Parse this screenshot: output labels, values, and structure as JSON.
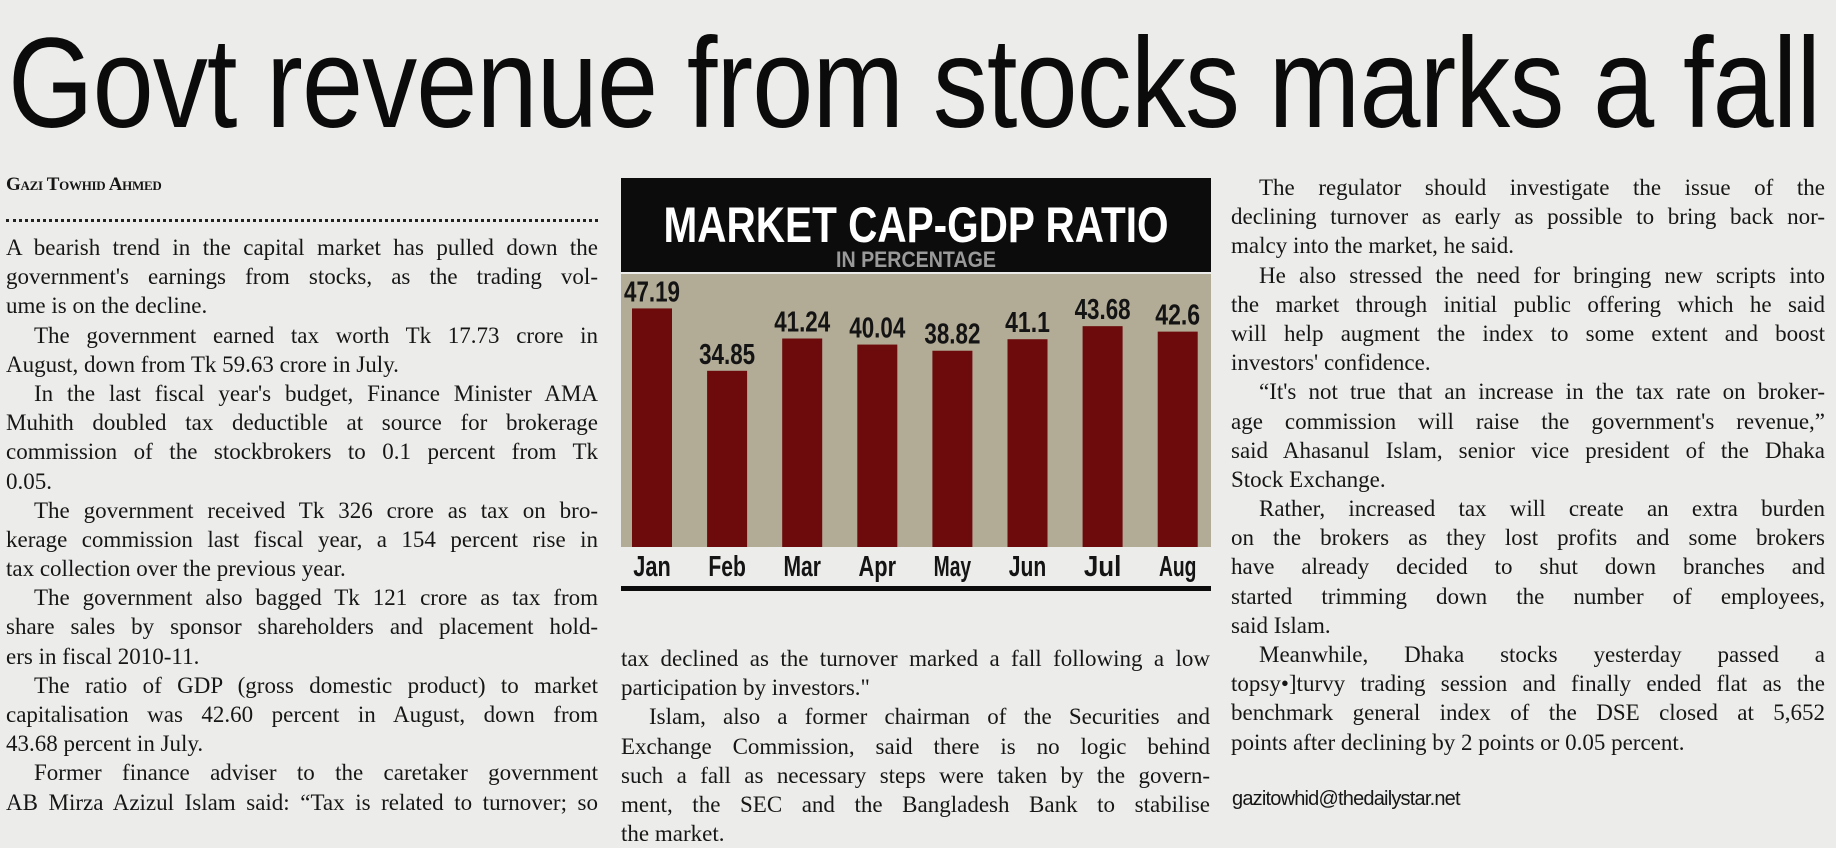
{
  "headline": "Govt revenue from stocks marks a fall",
  "byline": "Gazi Towhid Ahmed",
  "email": "gazitowhid@thedailystar.net",
  "columns": [
    [
      {
        "indent": false,
        "lines": [
          "A bearish trend in the capital market has pulled down the",
          "government's earnings from stocks, as the trading vol-",
          "ume is on the decline."
        ]
      },
      {
        "indent": true,
        "lines": [
          "The government earned tax worth Tk 17.73 crore in",
          "August, down from Tk 59.63 crore in July."
        ]
      },
      {
        "indent": true,
        "lines": [
          "In the last fiscal year's budget, Finance Minister AMA",
          "Muhith doubled tax deductible at source for brokerage",
          "commission of the stockbrokers to 0.1 percent from Tk",
          "0.05."
        ]
      },
      {
        "indent": true,
        "lines": [
          "The government received Tk 326 crore as tax on bro-",
          "kerage commission last fiscal year, a 154 percent rise in",
          "tax collection over the previous year."
        ]
      },
      {
        "indent": true,
        "lines": [
          "The government also bagged Tk 121 crore as tax from",
          "share sales by sponsor shareholders and placement hold-",
          "ers in fiscal 2010-11."
        ]
      },
      {
        "indent": true,
        "lines": [
          "The ratio of GDP (gross domestic product) to market",
          "capitalisation was 42.60 percent in August, down from",
          "43.68 percent in July."
        ]
      },
      {
        "indent": true,
        "continues": true,
        "lines": [
          "Former finance adviser to the caretaker government",
          "AB Mirza Azizul Islam said: “Tax is related to turnover; so"
        ]
      }
    ],
    [
      {
        "indent": false,
        "lines": [
          "tax declined as the turnover marked a fall following a low",
          "participation by investors.\""
        ]
      },
      {
        "indent": true,
        "lines": [
          "Islam, also a former chairman of the Securities and",
          "Exchange Commission, said there is no logic behind",
          "such a fall as necessary steps were taken by the govern-",
          "ment, the SEC and the Bangladesh Bank to stabilise",
          "the market."
        ]
      }
    ],
    [
      {
        "indent": true,
        "lines": [
          "The regulator should investigate the issue of the",
          "declining turnover as early as possible to bring back nor-",
          "malcy into the market, he said."
        ]
      },
      {
        "indent": true,
        "lines": [
          "He also stressed the need for bringing new scripts into",
          "the market through initial public offering which he said",
          "will help augment the index to some extent and boost",
          "investors' confidence."
        ]
      },
      {
        "indent": true,
        "lines": [
          "“It's not true that an increase in the tax rate on broker-",
          "age commission will raise the government's revenue,”",
          "said Ahasanul Islam, senior vice president of the Dhaka",
          "Stock Exchange."
        ]
      },
      {
        "indent": true,
        "lines": [
          "Rather, increased tax will create an extra burden",
          "on the brokers as they lost profits and some brokers",
          "have already decided to shut down branches and",
          "started trimming down the number of employees,",
          "said Islam."
        ]
      },
      {
        "indent": true,
        "lines": [
          "Meanwhile, Dhaka stocks yesterday passed a",
          "topsy•]turvy trading session and finally ended flat as the",
          "benchmark general index of the DSE closed at 5,652",
          "points after declining by 2 points or 0.05 percent."
        ]
      }
    ]
  ],
  "chart_data": {
    "type": "bar",
    "title": "MARKET CAP-GDP RATIO",
    "subtitle": "IN PERCENTAGE",
    "categories": [
      "Jan",
      "Feb",
      "Mar",
      "Apr",
      "May",
      "Jun",
      "Jul",
      "Aug"
    ],
    "values": [
      47.19,
      34.85,
      41.24,
      40.04,
      38.82,
      41.1,
      43.68,
      42.6
    ],
    "value_labels": [
      "47.19",
      "34.85",
      "41.24",
      "40.04",
      "38.82",
      "41.1",
      "43.68",
      "42.6"
    ],
    "ylim": [
      0,
      54
    ],
    "grid": false,
    "colors": {
      "bar": "#6d0a0b",
      "plot_bg": "#b2ab96",
      "header_bg": "#0c0c0c",
      "title": "#ffffff",
      "subtitle": "#9a9a9a"
    }
  }
}
